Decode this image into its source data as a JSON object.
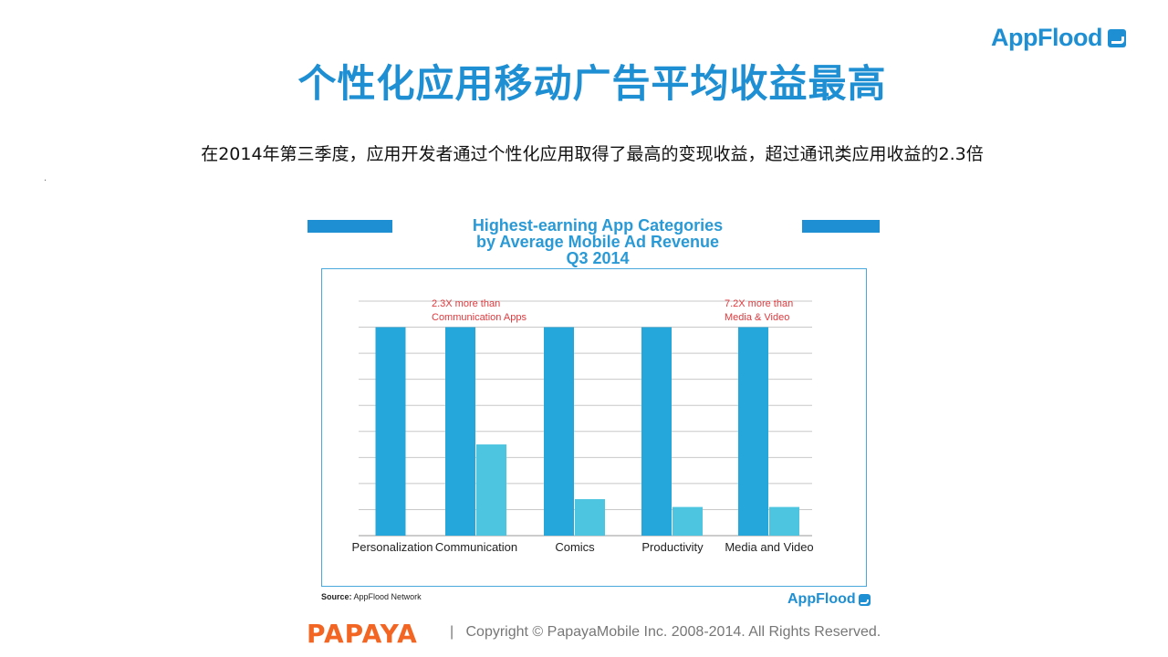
{
  "brand": {
    "name": "AppFlood",
    "icon": "appflood-logo-icon",
    "color": "#1f8fd3"
  },
  "slide": {
    "title": "个性化应用移动广告平均收益最高",
    "subtitle": "在2014年第三季度，应用开发者通过个性化应用取得了最高的变现收益，超过通讯类应用收益的2.3倍",
    "dot": "."
  },
  "chart_data": {
    "type": "bar",
    "title": "Highest-earning App Categories by Average Mobile Ad Revenue Q3 2014",
    "title_lines": [
      "Highest-earning App Categories",
      "by Average Mobile Ad Revenue",
      "Q3 2014"
    ],
    "categories": [
      "Personalization",
      "Communication",
      "Comics",
      "Productivity",
      "Media and Video"
    ],
    "series": [
      {
        "values": [
          8.0,
          8.0,
          8.0,
          8.0,
          8.0
        ],
        "color": "#26a7dc"
      },
      {
        "values": [
          null,
          3.5,
          1.4,
          1.1,
          1.1
        ],
        "color": "#4ec5e0"
      }
    ],
    "ylim": [
      0,
      9
    ],
    "grid": true,
    "annotations": [
      {
        "category": "Communication",
        "lines": [
          "2.3X more than",
          "Communication Apps"
        ],
        "color": "#e03a3e"
      },
      {
        "category": "Media and Video",
        "lines": [
          "7.2X more than",
          "Media & Video"
        ],
        "color": "#e03a3e"
      }
    ],
    "source_label": "Source:",
    "source_text": "AppFlood Network"
  },
  "footer": {
    "partner_logo": "PAPAYA",
    "separator": "|",
    "copyright": "Copyright © PapayaMobile Inc. 2008-2014. All Rights Reserved."
  }
}
